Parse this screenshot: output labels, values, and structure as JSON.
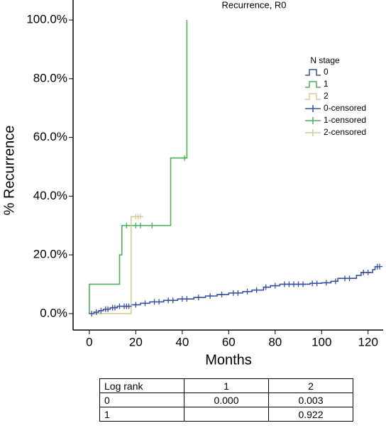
{
  "chart_data": {
    "type": "step",
    "title": "Recurrence, R0",
    "x_label": "Months",
    "y_label": "% Recurrence",
    "legend_title": "N stage",
    "legend": "upper right",
    "xlim": [
      -7,
      126.5
    ],
    "ylim": [
      -5.6,
      106.8
    ],
    "xticks": [
      0,
      20,
      40,
      60,
      80,
      100,
      120
    ],
    "yticks": [
      {
        "value": 0,
        "label": "0.0%"
      },
      {
        "value": 20,
        "label": "20.0%"
      },
      {
        "value": 40,
        "label": "40.0%"
      },
      {
        "value": 60,
        "label": "60.0%"
      },
      {
        "value": 80,
        "label": "80.0%"
      },
      {
        "value": 100,
        "label": "100.0%"
      }
    ],
    "series": [
      {
        "name": "0",
        "color": "#3b4f9e",
        "marker": "line",
        "x": [
          0,
          2,
          4,
          6,
          9,
          12,
          18,
          22,
          26,
          32,
          38,
          45,
          50,
          55,
          60,
          66,
          70,
          75,
          78,
          82,
          95,
          100,
          104,
          107,
          115,
          117,
          122,
          123,
          125
        ],
        "values": [
          0,
          0.5,
          1,
          1.5,
          2,
          2.5,
          3,
          3.5,
          4,
          4.5,
          5,
          5.5,
          6,
          6.5,
          7,
          7.5,
          8,
          9,
          9.5,
          10,
          10.3,
          10.5,
          11,
          12,
          13,
          14,
          15,
          16,
          16
        ]
      },
      {
        "name": "1",
        "color": "#4caf5a",
        "marker": "line",
        "x": [
          0,
          0,
          13,
          14,
          35,
          42
        ],
        "values": [
          0,
          10,
          20,
          30,
          53,
          100
        ]
      },
      {
        "name": "2",
        "color": "#d6cc92",
        "marker": "line",
        "x": [
          0,
          18,
          22
        ],
        "values": [
          0,
          33,
          33
        ]
      },
      {
        "name": "0-censored",
        "color": "#3b4f9e",
        "marker": "plus",
        "x": [
          1,
          3,
          5,
          7,
          8,
          10,
          11,
          13,
          15,
          16,
          17,
          20,
          24,
          28,
          30,
          34,
          36,
          40,
          42,
          47,
          52,
          57,
          62,
          64,
          68,
          72,
          76,
          80,
          84,
          86,
          88,
          90,
          92,
          96,
          98,
          102,
          106,
          110,
          112,
          118,
          120,
          124,
          125
        ],
        "values": [
          0,
          0.5,
          1,
          1.5,
          1.5,
          2,
          2,
          2.5,
          2.5,
          2.5,
          2.5,
          3,
          3.5,
          4,
          4,
          4.5,
          4.5,
          5,
          5,
          5.5,
          6,
          6.5,
          7,
          7,
          7.5,
          8,
          9,
          9.5,
          10,
          10,
          10,
          10,
          10,
          10.3,
          10.3,
          10.5,
          11,
          12,
          12,
          14,
          14,
          16,
          16
        ]
      },
      {
        "name": "1-censored",
        "color": "#4caf5a",
        "marker": "plus",
        "x": [
          16,
          20,
          22,
          27,
          41
        ],
        "values": [
          30,
          30,
          30,
          30,
          53
        ]
      },
      {
        "name": "2-censored",
        "color": "#d6cc92",
        "marker": "plus",
        "x": [
          20,
          21,
          22
        ],
        "values": [
          33,
          33,
          33
        ]
      }
    ]
  },
  "table": {
    "header": [
      "Log rank",
      "1",
      "2"
    ],
    "rows": [
      [
        "0",
        "0.000",
        "0.003"
      ],
      [
        "1",
        null,
        "0.922"
      ]
    ]
  }
}
